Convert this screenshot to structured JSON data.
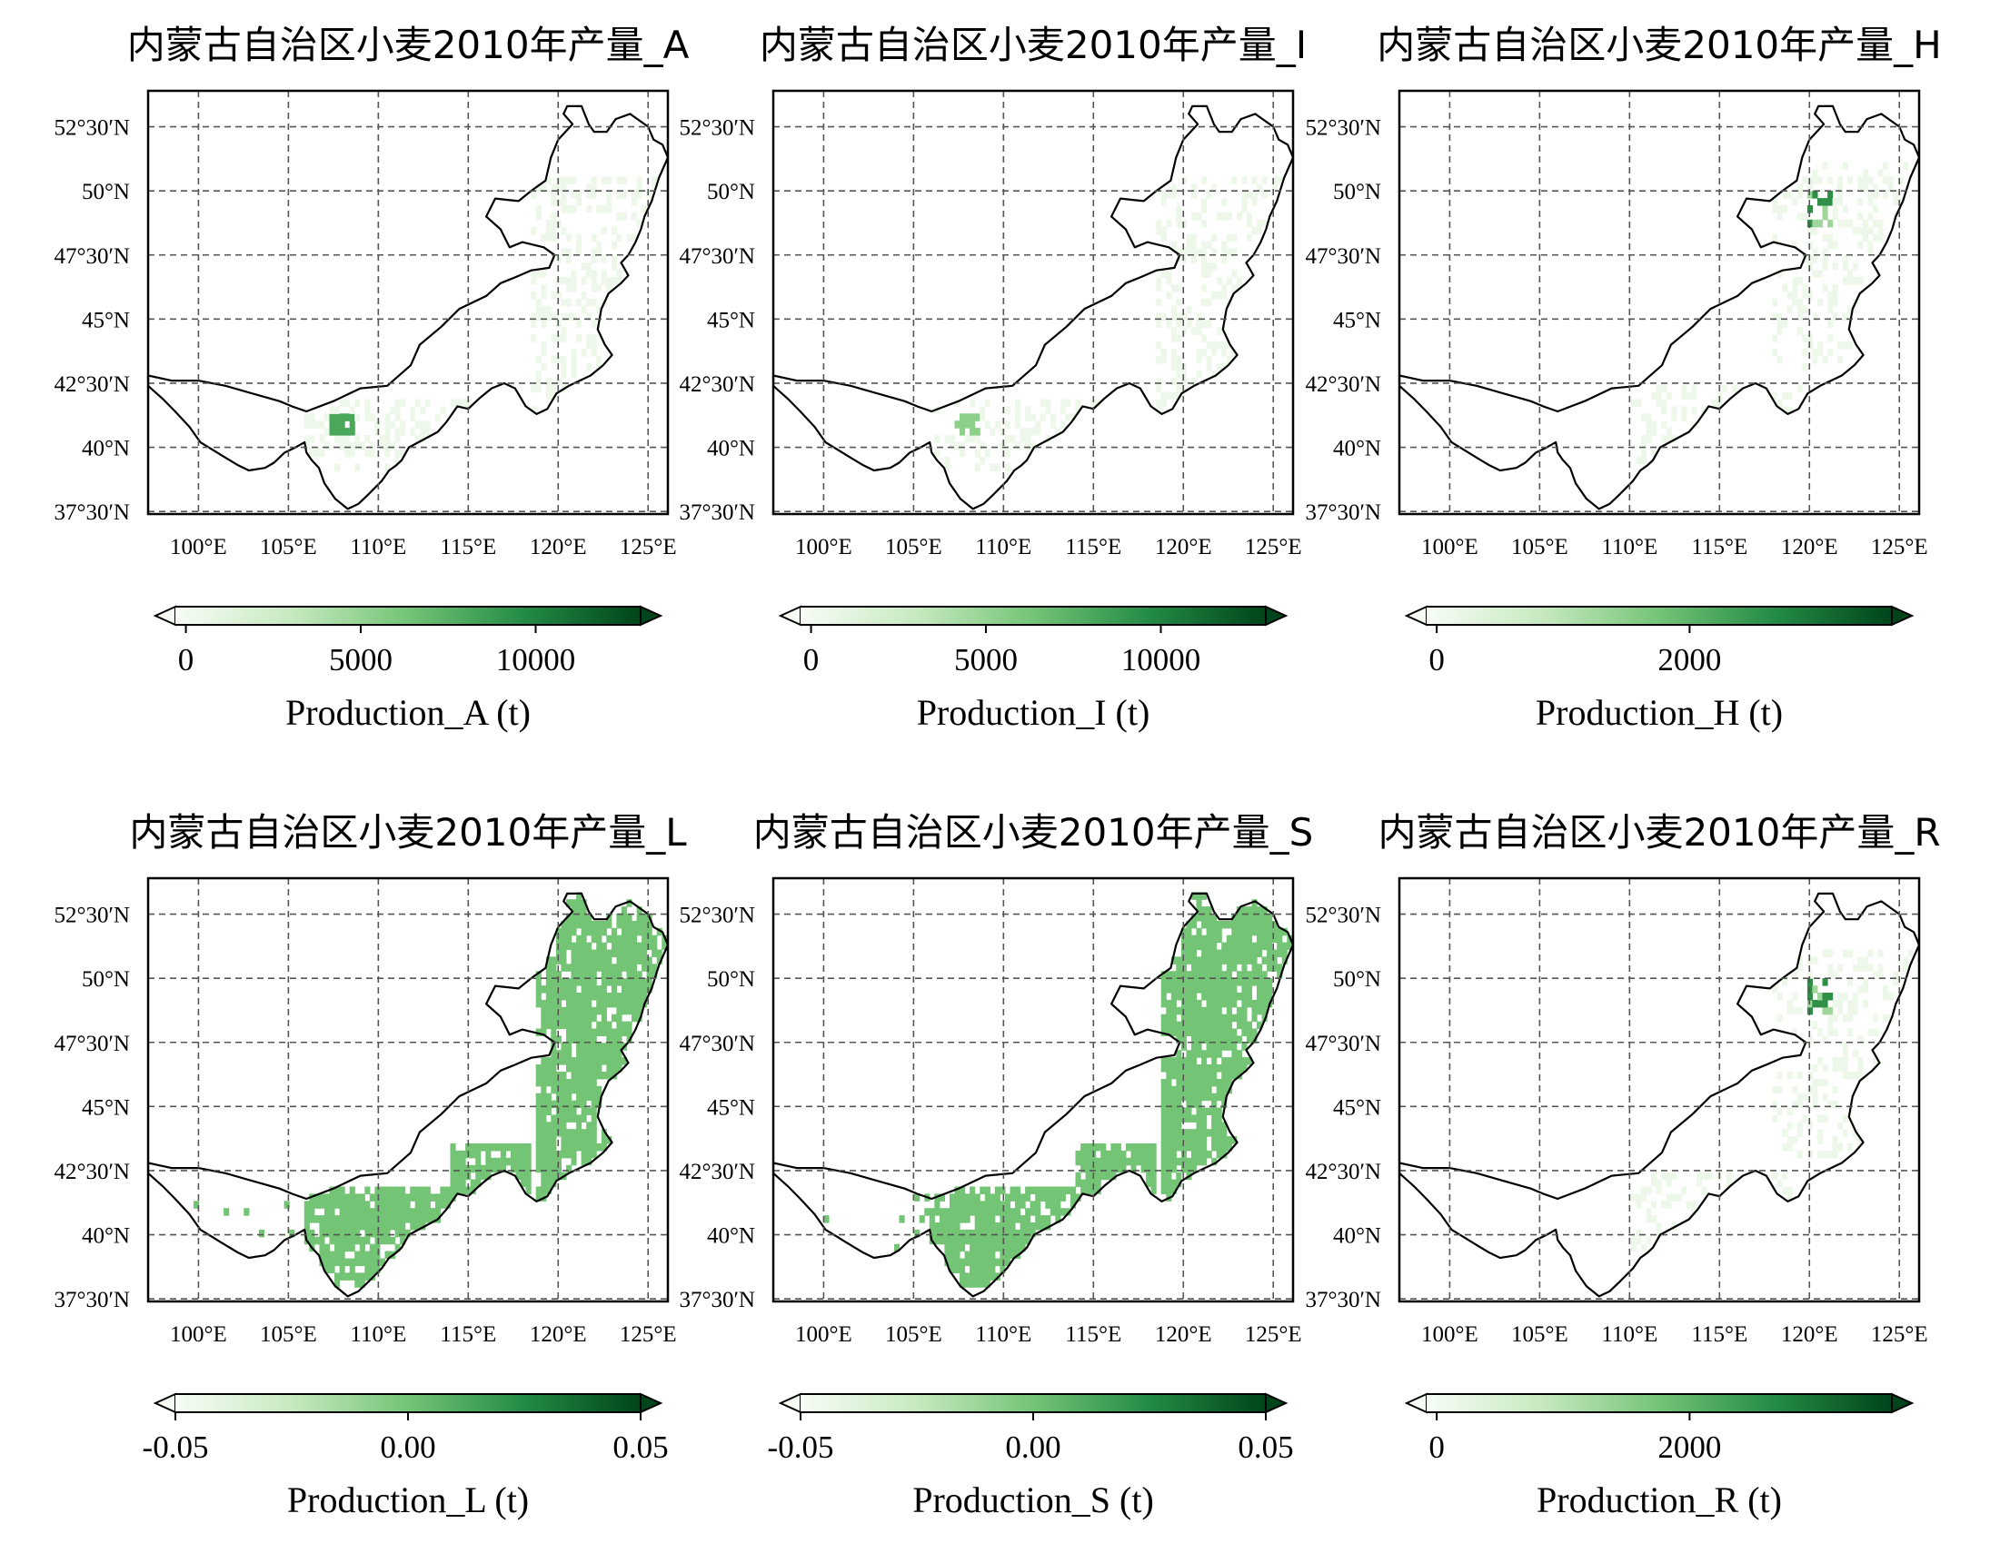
{
  "figure": {
    "panels": [
      {
        "id": "A",
        "title": "内蒙古自治区小麦2010年产量_A",
        "colorbar": {
          "ticks": [
            "0",
            "5000",
            "10000"
          ],
          "tick_values": [
            0,
            5000,
            10000
          ],
          "vmin": -300,
          "vmax": 13000,
          "label": "Production_A (t)"
        },
        "density": "sparse-west",
        "show_lat_labels": true
      },
      {
        "id": "I",
        "title": "内蒙古自治区小麦2010年产量_I",
        "colorbar": {
          "ticks": [
            "0",
            "5000",
            "10000"
          ],
          "tick_values": [
            0,
            5000,
            10000
          ],
          "vmin": -300,
          "vmax": 13000,
          "label": "Production_I (t)"
        },
        "density": "sparse-west-faint",
        "show_lat_labels": true
      },
      {
        "id": "H",
        "title": "内蒙古自治区小麦2010年产量_H",
        "colorbar": {
          "ticks": [
            "0",
            "2000"
          ],
          "tick_values": [
            0,
            2000
          ],
          "vmin": -80,
          "vmax": 3600,
          "label": "Production_H (t)"
        },
        "density": "sparse-northeast",
        "show_lat_labels": true
      },
      {
        "id": "L",
        "title": "内蒙古自治区小麦2010年产量_L",
        "colorbar": {
          "ticks": [
            "-0.05",
            "0.00",
            "0.05"
          ],
          "tick_values": [
            -0.05,
            0.0,
            0.05
          ],
          "vmin": -0.05,
          "vmax": 0.05,
          "label": "Production_L (t)"
        },
        "density": "full",
        "show_lat_labels": true
      },
      {
        "id": "S",
        "title": "内蒙古自治区小麦2010年产量_S",
        "colorbar": {
          "ticks": [
            "-0.05",
            "0.00",
            "0.05"
          ],
          "tick_values": [
            -0.05,
            0.0,
            0.05
          ],
          "vmin": -0.05,
          "vmax": 0.05,
          "label": "Production_S (t)"
        },
        "density": "full",
        "show_lat_labels": true
      },
      {
        "id": "R",
        "title": "内蒙古自治区小麦2010年产量_R",
        "colorbar": {
          "ticks": [
            "0",
            "2000"
          ],
          "tick_values": [
            0,
            2000
          ],
          "vmin": -80,
          "vmax": 3600,
          "label": "Production_R (t)"
        },
        "density": "sparse-northeast",
        "show_lat_labels": true
      }
    ],
    "lat_ticks": [
      "52°30′N",
      "50°N",
      "47°30′N",
      "45°N",
      "42°30′N",
      "40°N",
      "37°30′N"
    ],
    "lat_values": [
      52.5,
      50,
      47.5,
      45,
      42.5,
      40,
      37.5
    ],
    "lon_ticks": [
      "100°E",
      "105°E",
      "110°E",
      "115°E",
      "120°E",
      "125°E"
    ],
    "lon_values": [
      100,
      105,
      110,
      115,
      120,
      125
    ],
    "extent": {
      "lon_min": 97.2,
      "lon_max": 126.1,
      "lat_min": 37.4,
      "lat_max": 53.9
    },
    "colormap": "Greens",
    "colors": {
      "full_fill": "#74c476",
      "cmap_start": "#f7fcf5",
      "cmap_mid": "#74c476",
      "cmap_end": "#00441b",
      "grid": "#555555"
    }
  }
}
